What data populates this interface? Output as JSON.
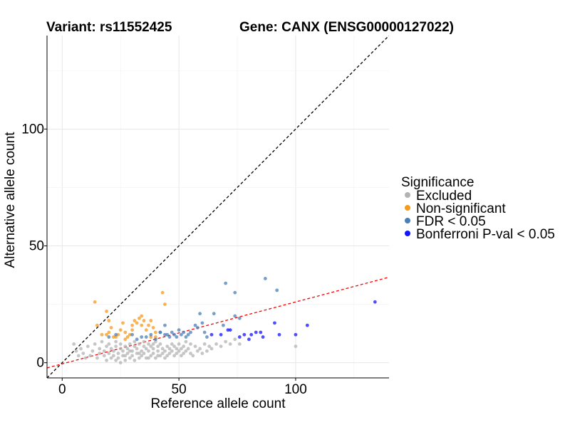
{
  "chart_data": {
    "type": "scatter",
    "title_left": "Variant: rs11552425",
    "title_right": "Gene: CANX (ENSG00000127022)",
    "xlabel": "Reference allele count",
    "ylabel": "Alternative allele count",
    "xlim": [
      -6.5,
      140
    ],
    "ylim": [
      -6.5,
      140
    ],
    "x_ticks": [
      0,
      50,
      100
    ],
    "y_ticks": [
      0,
      50,
      100
    ],
    "reference_lines": [
      {
        "name": "identity",
        "intercept": 0,
        "slope": 1,
        "color": "#000000",
        "style": "dashed"
      },
      {
        "name": "fit",
        "intercept": -0.5,
        "slope": 0.265,
        "color": "#ff0000",
        "style": "dashed"
      }
    ],
    "legend": {
      "title": "Significance",
      "position": "right",
      "items": [
        {
          "label": "Excluded",
          "color": "#b3b3b3"
        },
        {
          "label": "Non-significant",
          "color": "#f59a1f"
        },
        {
          "label": "FDR < 0.05",
          "color": "#4a7fb8"
        },
        {
          "label": "Bonferroni P-val < 0.05",
          "color": "#1414ff"
        }
      ]
    },
    "series": [
      {
        "name": "Excluded",
        "color": "#b3b3b3",
        "points": [
          [
            5,
            8
          ],
          [
            6,
            5
          ],
          [
            7,
            3
          ],
          [
            8,
            6
          ],
          [
            9,
            4
          ],
          [
            10,
            2
          ],
          [
            11,
            7
          ],
          [
            12,
            3
          ],
          [
            13,
            5
          ],
          [
            14,
            8
          ],
          [
            15,
            2
          ],
          [
            16,
            4
          ],
          [
            16,
            6
          ],
          [
            17,
            9
          ],
          [
            18,
            3
          ],
          [
            18,
            5
          ],
          [
            19,
            1
          ],
          [
            19,
            7
          ],
          [
            20,
            4
          ],
          [
            20,
            8
          ],
          [
            21,
            2
          ],
          [
            21,
            6
          ],
          [
            22,
            5
          ],
          [
            22,
            3
          ],
          [
            23,
            9
          ],
          [
            23,
            7
          ],
          [
            24,
            4
          ],
          [
            24,
            2
          ],
          [
            25,
            6
          ],
          [
            25,
            8
          ],
          [
            26,
            3
          ],
          [
            26,
            5
          ],
          [
            27,
            7
          ],
          [
            27,
            1
          ],
          [
            28,
            4
          ],
          [
            28,
            6
          ],
          [
            29,
            8
          ],
          [
            29,
            2
          ],
          [
            30,
            5
          ],
          [
            30,
            3
          ],
          [
            31,
            7
          ],
          [
            31,
            9
          ],
          [
            32,
            4
          ],
          [
            32,
            6
          ],
          [
            33,
            2
          ],
          [
            33,
            8
          ],
          [
            34,
            5
          ],
          [
            34,
            3
          ],
          [
            35,
            7
          ],
          [
            35,
            4
          ],
          [
            36,
            6
          ],
          [
            36,
            2
          ],
          [
            37,
            8
          ],
          [
            37,
            5
          ],
          [
            38,
            3
          ],
          [
            38,
            7
          ],
          [
            39,
            4
          ],
          [
            39,
            6
          ],
          [
            40,
            9
          ],
          [
            40,
            2
          ],
          [
            41,
            5
          ],
          [
            41,
            7
          ],
          [
            42,
            3
          ],
          [
            42,
            8
          ],
          [
            43,
            4
          ],
          [
            43,
            6
          ],
          [
            44,
            2
          ],
          [
            44,
            5
          ],
          [
            45,
            7
          ],
          [
            45,
            3
          ],
          [
            46,
            6
          ],
          [
            46,
            4
          ],
          [
            47,
            8
          ],
          [
            47,
            5
          ],
          [
            48,
            3
          ],
          [
            48,
            7
          ],
          [
            49,
            6
          ],
          [
            49,
            4
          ],
          [
            50,
            5
          ],
          [
            50,
            8
          ],
          [
            51,
            3
          ],
          [
            51,
            6
          ],
          [
            52,
            7
          ],
          [
            52,
            4
          ],
          [
            53,
            5
          ],
          [
            53,
            9
          ],
          [
            54,
            6
          ],
          [
            55,
            4
          ],
          [
            55,
            8
          ],
          [
            56,
            3
          ],
          [
            57,
            7
          ],
          [
            58,
            5
          ],
          [
            59,
            6
          ],
          [
            60,
            4
          ],
          [
            61,
            8
          ],
          [
            62,
            5
          ],
          [
            63,
            7
          ],
          [
            64,
            6
          ],
          [
            66,
            8
          ],
          [
            68,
            7
          ],
          [
            70,
            9
          ],
          [
            72,
            8
          ],
          [
            74,
            10
          ],
          [
            76,
            8
          ],
          [
            100,
            7
          ],
          [
            23,
            1
          ],
          [
            25,
            0
          ],
          [
            27,
            3
          ],
          [
            29,
            5
          ],
          [
            31,
            1
          ],
          [
            33,
            4
          ],
          [
            35,
            9
          ],
          [
            37,
            2
          ],
          [
            39,
            8
          ],
          [
            41,
            3
          ]
        ]
      },
      {
        "name": "Non-significant",
        "color": "#f59a1f",
        "points": [
          [
            14,
            26
          ],
          [
            15,
            16
          ],
          [
            17,
            12
          ],
          [
            19,
            12
          ],
          [
            19,
            22
          ],
          [
            20,
            13
          ],
          [
            20,
            18
          ],
          [
            21,
            15
          ],
          [
            22,
            11
          ],
          [
            23,
            11
          ],
          [
            24,
            12
          ],
          [
            25,
            14
          ],
          [
            26,
            17
          ],
          [
            27,
            10
          ],
          [
            27,
            13
          ],
          [
            28,
            11
          ],
          [
            29,
            12
          ],
          [
            30,
            14
          ],
          [
            30,
            16
          ],
          [
            31,
            18
          ],
          [
            32,
            17
          ],
          [
            33,
            19
          ],
          [
            34,
            20
          ],
          [
            34,
            16
          ],
          [
            35,
            18
          ],
          [
            36,
            14
          ],
          [
            37,
            16
          ],
          [
            38,
            18
          ],
          [
            39,
            15
          ],
          [
            40,
            13
          ],
          [
            43,
            30
          ],
          [
            44,
            25
          ],
          [
            38,
            11
          ],
          [
            40,
            11
          ]
        ]
      },
      {
        "name": "FDR < 0.05",
        "color": "#4a7fb8",
        "points": [
          [
            20,
            11
          ],
          [
            23,
            12
          ],
          [
            30,
            12
          ],
          [
            32,
            10
          ],
          [
            34,
            11
          ],
          [
            36,
            11
          ],
          [
            38,
            12
          ],
          [
            40,
            10
          ],
          [
            42,
            13
          ],
          [
            44,
            16
          ],
          [
            45,
            12
          ],
          [
            46,
            11
          ],
          [
            47,
            13
          ],
          [
            48,
            12
          ],
          [
            49,
            11
          ],
          [
            50,
            14
          ],
          [
            51,
            12
          ],
          [
            52,
            13
          ],
          [
            53,
            11
          ],
          [
            54,
            12
          ],
          [
            55,
            13
          ],
          [
            57,
            16
          ],
          [
            58,
            15
          ],
          [
            59,
            21
          ],
          [
            60,
            17
          ],
          [
            61,
            13
          ],
          [
            62,
            11
          ],
          [
            65,
            21
          ],
          [
            69,
            16
          ],
          [
            70,
            34
          ],
          [
            74,
            30
          ],
          [
            74,
            20
          ],
          [
            76,
            19
          ],
          [
            87,
            36
          ],
          [
            92,
            31
          ],
          [
            42,
            13
          ],
          [
            44,
            12
          ]
        ]
      },
      {
        "name": "Bonferroni P-val < 0.05",
        "color": "#1414ff",
        "points": [
          [
            64,
            12
          ],
          [
            68,
            12
          ],
          [
            71,
            14
          ],
          [
            72,
            14
          ],
          [
            76,
            11
          ],
          [
            78,
            12
          ],
          [
            80,
            10
          ],
          [
            81,
            12
          ],
          [
            83,
            13
          ],
          [
            85,
            13
          ],
          [
            86,
            11
          ],
          [
            91,
            17
          ],
          [
            93,
            12
          ],
          [
            100,
            12
          ],
          [
            105,
            16
          ],
          [
            134,
            26
          ]
        ]
      }
    ]
  }
}
